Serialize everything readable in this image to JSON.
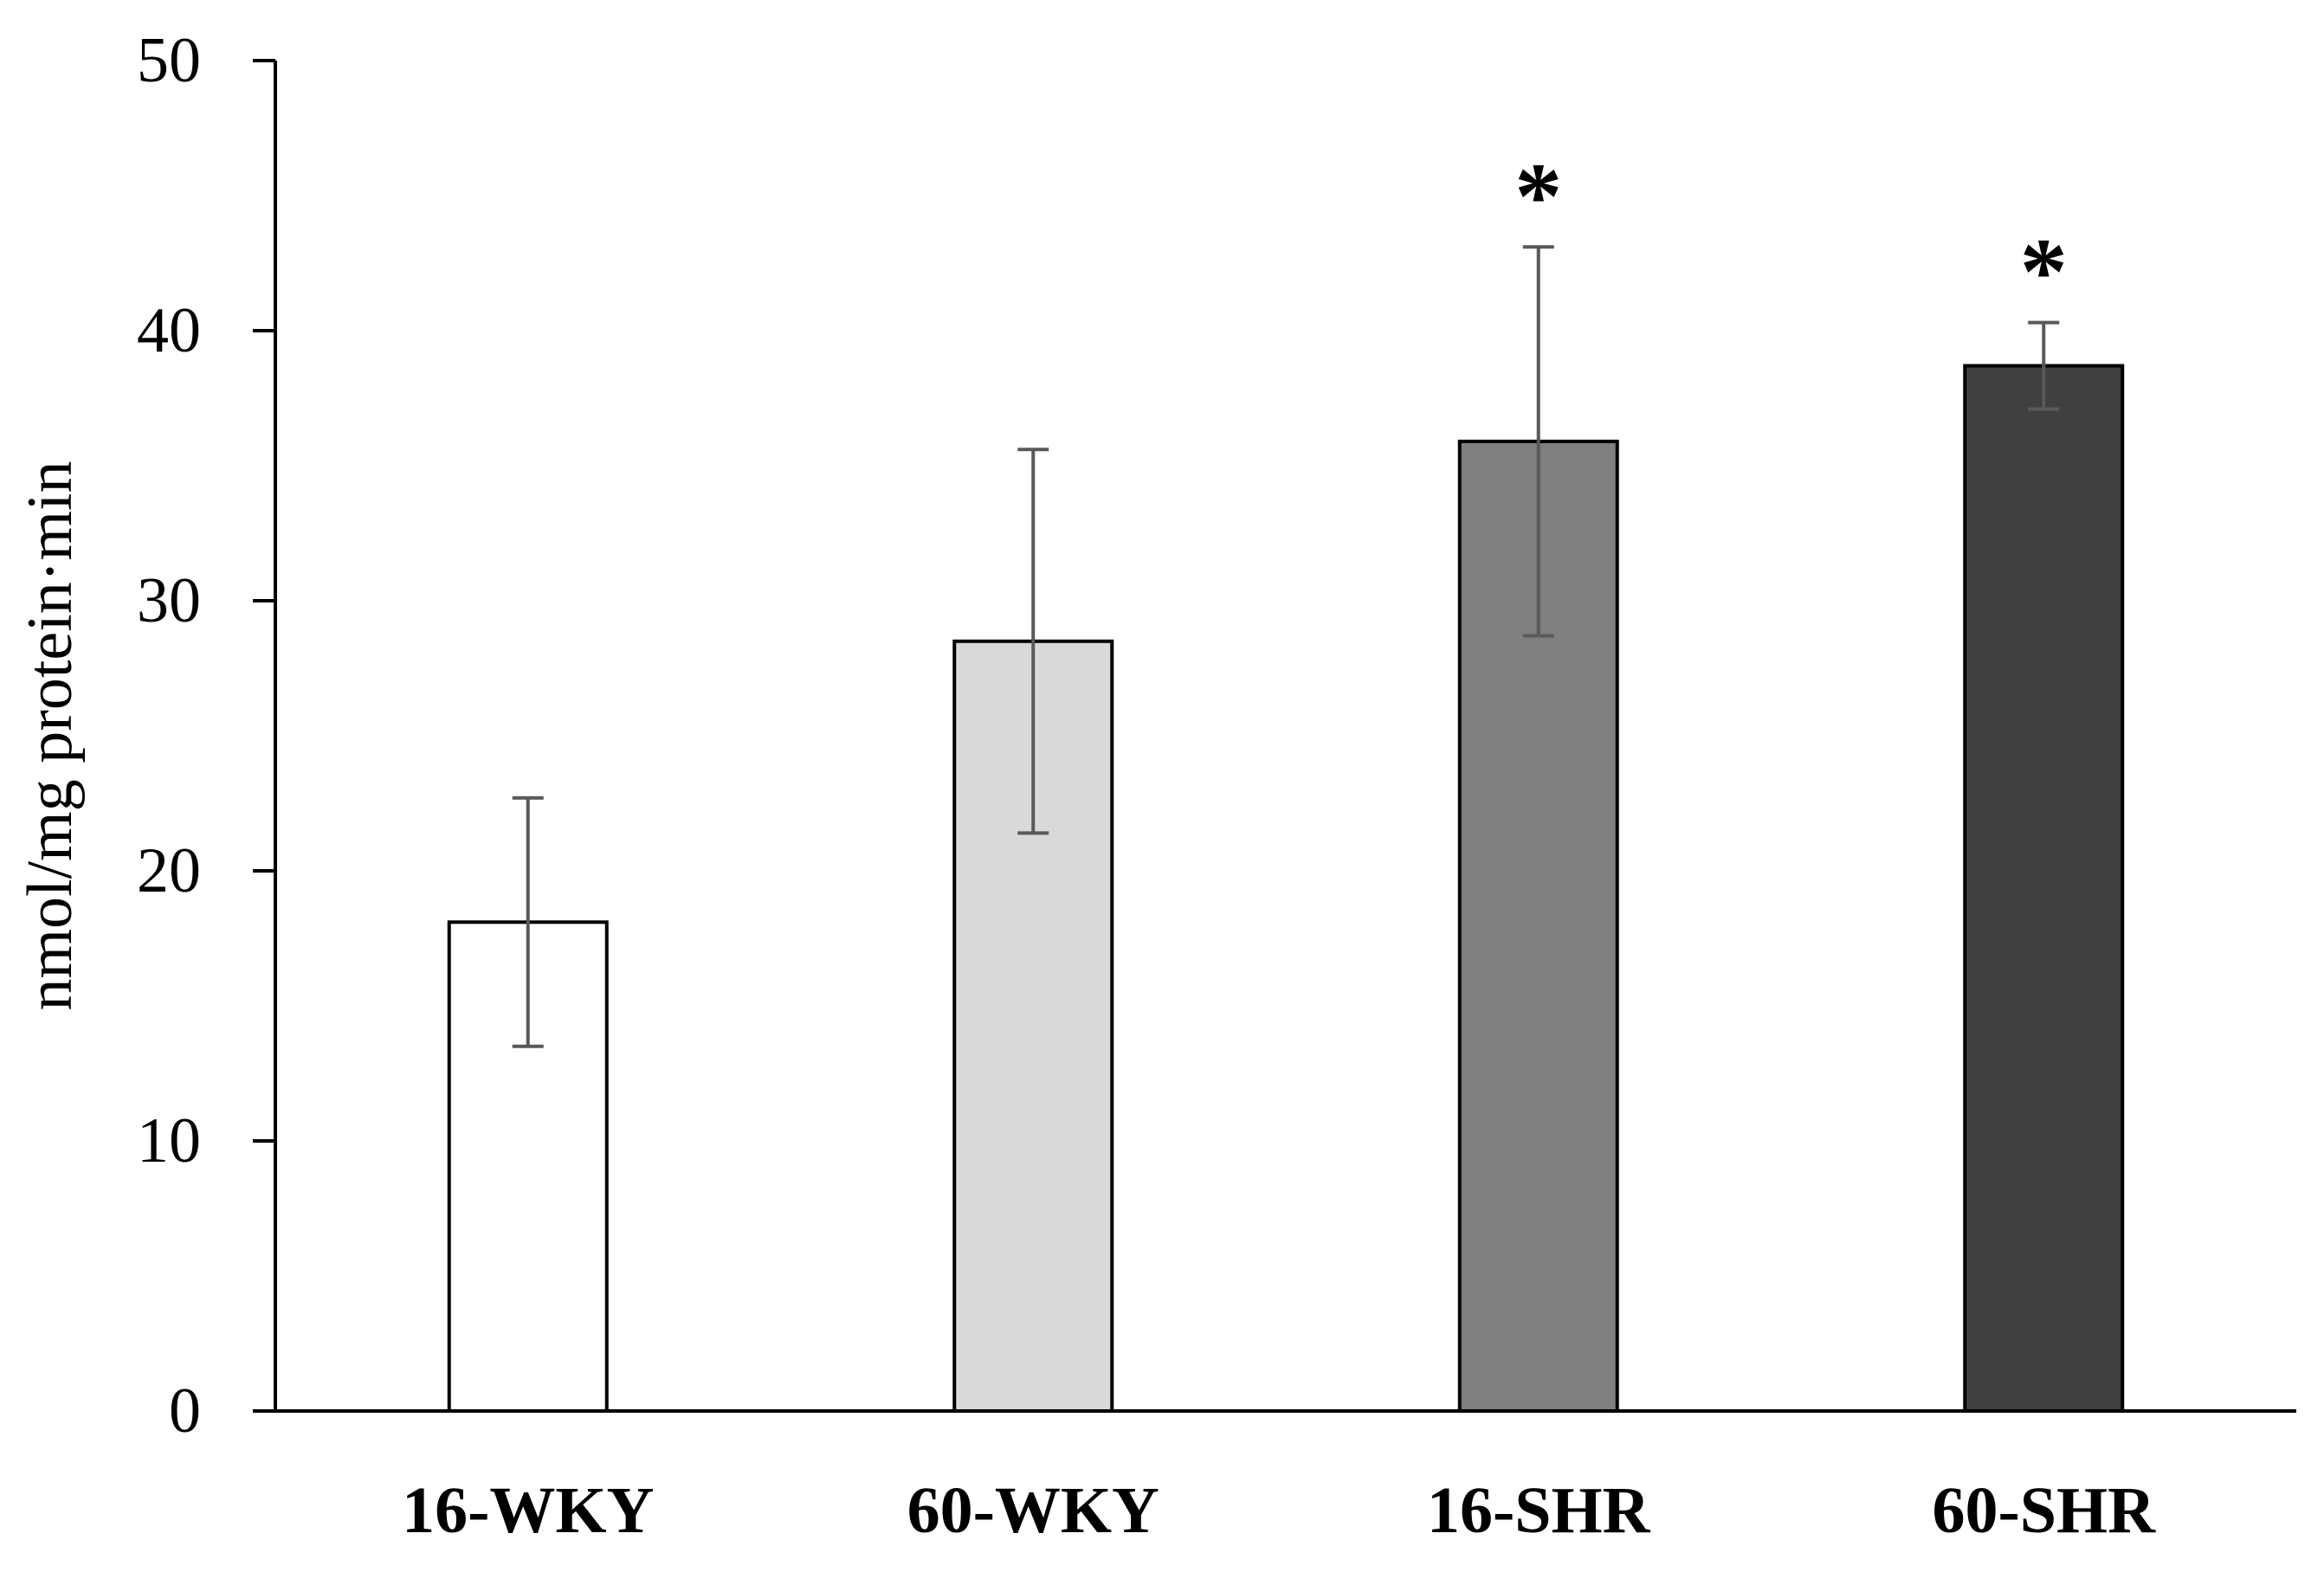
{
  "chart_data": {
    "type": "bar",
    "title": "",
    "xlabel": "",
    "ylabel": "nmol/mg protein·min",
    "ylim": [
      0,
      50
    ],
    "yticks": [
      0,
      10,
      20,
      30,
      40,
      50
    ],
    "ytick_labels": [
      "0",
      "10",
      "20",
      "30",
      "40",
      "50"
    ],
    "grid": false,
    "legend": "none",
    "categories": [
      "16-WKY",
      "60-WKY",
      "16-SHR",
      "60-SHR"
    ],
    "values": [
      18.1,
      28.5,
      35.9,
      38.7
    ],
    "error": [
      4.6,
      7.1,
      7.2,
      1.6
    ],
    "significance": [
      "",
      "",
      "*",
      "*"
    ],
    "colors": [
      "#ffffff",
      "#d9d9d9",
      "#7f7f7f",
      "#404040"
    ],
    "bar_edge_color": "#000000",
    "error_bar_color": "#595959",
    "axis_color": "#000000"
  }
}
